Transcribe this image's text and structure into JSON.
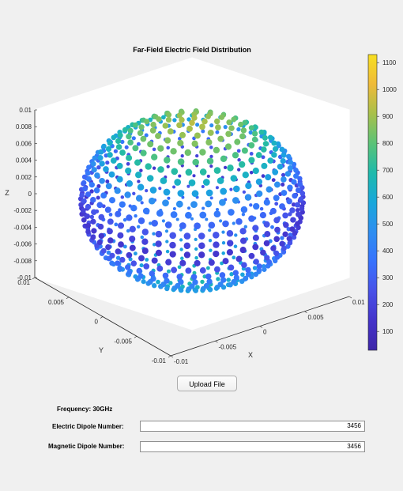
{
  "chart_data": {
    "type": "scatter",
    "subtype": "3d-scatter-sphere",
    "title": "Far-Field Electric Field Distribution",
    "xlabel": "X",
    "ylabel": "Y",
    "zlabel": "Z",
    "xlim": [
      -0.01,
      0.01
    ],
    "ylim": [
      -0.01,
      0.01
    ],
    "zlim": [
      -0.01,
      0.01
    ],
    "x_ticks": [
      "-0.01",
      "-0.005",
      "0",
      "0.005",
      "0.01"
    ],
    "y_ticks": [
      "-0.01",
      "-0.005",
      "0",
      "0.005",
      "0.01"
    ],
    "z_ticks": [
      "0.01",
      "0.008",
      "0.006",
      "0.004",
      "0.002",
      "0",
      "-0.002",
      "-0.004",
      "-0.006",
      "-0.008",
      "-0.01"
    ],
    "colorbar": {
      "colormap": "parula",
      "range": [
        30,
        1130
      ],
      "ticks": [
        "1100",
        "1000",
        "900",
        "800",
        "700",
        "600",
        "500",
        "400",
        "300",
        "200",
        "100"
      ]
    },
    "sphere_radius": 0.01,
    "field_by_elevation_deg": [
      {
        "elevation": 90,
        "value": 940
      },
      {
        "elevation": 60,
        "value": 820
      },
      {
        "elevation": 40,
        "value": 620
      },
      {
        "elevation": 20,
        "value": 380
      },
      {
        "elevation": 0,
        "value": 200
      },
      {
        "elevation": -10,
        "value": 130
      },
      {
        "elevation": -30,
        "value": 360
      },
      {
        "elevation": -60,
        "value": 560
      },
      {
        "elevation": -90,
        "value": 720
      }
    ],
    "grid": false,
    "box": "3d"
  },
  "controls": {
    "upload_label": "Upload File",
    "frequency_text": "Frequency: 30GHz",
    "electric_label": "Electric Dipole Number:",
    "electric_value": "3456",
    "magnetic_label": "Magnetic Dipole Number:",
    "magnetic_value": "3456"
  },
  "colors": {
    "background": "#f0f0f0",
    "axes_line": "#262626",
    "box_line": "#ffffff"
  }
}
